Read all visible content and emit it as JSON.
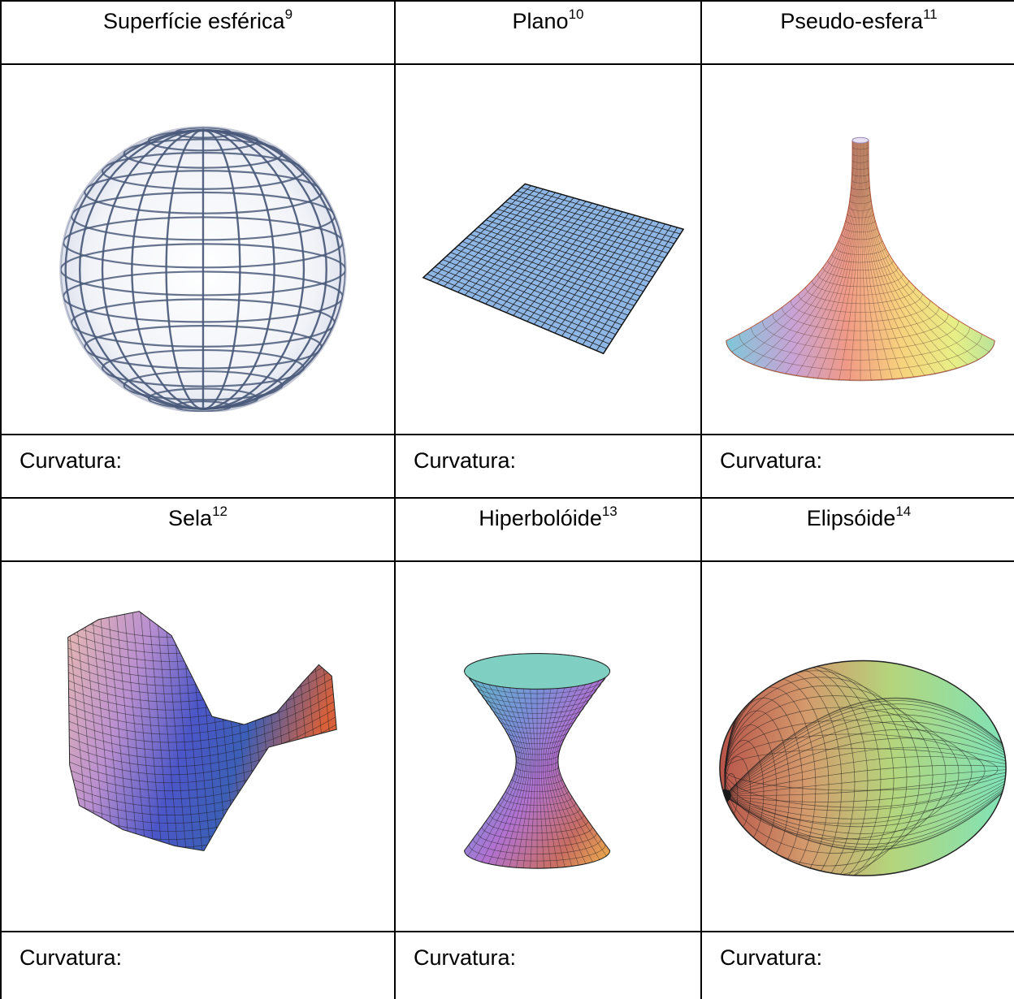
{
  "rows": [
    {
      "cells": [
        {
          "title": "Superfície esférica",
          "note": "9",
          "label": "Curvatura:",
          "figure": "sphere-wireframe"
        },
        {
          "title": "Plano",
          "note": "10",
          "label": "Curvatura:",
          "figure": "plane-grid"
        },
        {
          "title": "Pseudo-esfera",
          "note": "11",
          "label": "Curvatura:",
          "figure": "pseudosphere"
        }
      ]
    },
    {
      "cells": [
        {
          "title": "Sela",
          "note": "12",
          "label": "Curvatura:",
          "figure": "saddle-surface"
        },
        {
          "title": "Hiperbolóide",
          "note": "13",
          "label": "Curvatura:",
          "figure": "hyperboloid"
        },
        {
          "title": "Elipsóide",
          "note": "14",
          "label": "Curvatura:",
          "figure": "ellipsoid"
        }
      ]
    }
  ],
  "colors": {
    "sphere_lines": "#4a5a7a",
    "plane_fill": "#8fb7e6",
    "grid_line": "#1a1a1a"
  }
}
